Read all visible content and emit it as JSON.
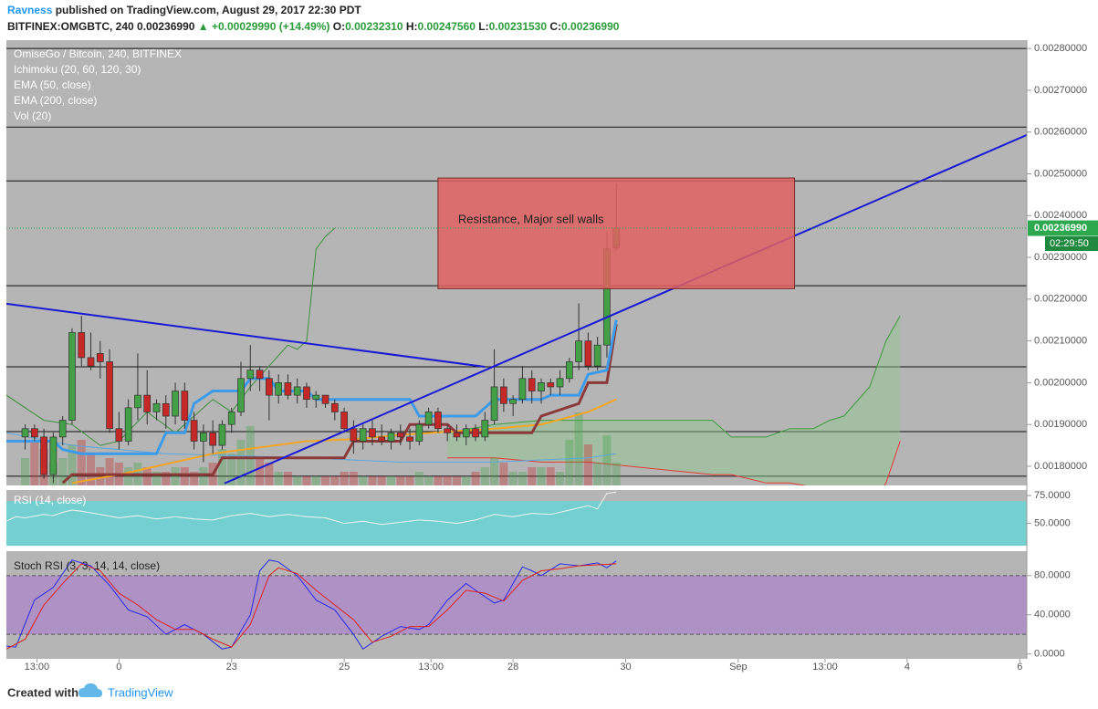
{
  "header": {
    "author": "Ravness",
    "published": "published on TradingView.com, August 29, 2017 22:30 PDT",
    "symbol": "BITFINEX:OMGBTC, 240",
    "price": "0.00236990",
    "change": "▲ +0.00029990 (+14.49%)",
    "ohlc": [
      {
        "label": "O:",
        "value": "0.00232310"
      },
      {
        "label": "H:",
        "value": "0.00247560"
      },
      {
        "label": "L:",
        "value": "0.00231530"
      },
      {
        "label": "C:",
        "value": "0.00236990"
      }
    ]
  },
  "footer": {
    "created": "Created with",
    "brand": "TradingView"
  },
  "chart_data": [
    {
      "type": "candlestick",
      "title": "OmiseGo / Bitcoin, 240, BITFINEX",
      "indicators": [
        "Ichimoku (20, 60, 120, 30)",
        "EMA (50, close)",
        "EMA (200, close)",
        "Vol (20)"
      ],
      "x": [
        -40,
        -36,
        -32,
        -28,
        -24,
        -20,
        -16,
        -12,
        -8,
        -4,
        0,
        4,
        8,
        12,
        16,
        20,
        24,
        28,
        32,
        36,
        40,
        44,
        48,
        52,
        56,
        60,
        64,
        68,
        72,
        76,
        80,
        84,
        88,
        92,
        96,
        100,
        104,
        108,
        112,
        116,
        120,
        124,
        128,
        132,
        136,
        140,
        144,
        148,
        152,
        156,
        160,
        164,
        168,
        172,
        176,
        180,
        184,
        188,
        192,
        196,
        200,
        204,
        208,
        212
      ],
      "open": [
        0.00187,
        0.00189,
        0.00187,
        0.00178,
        0.00187,
        0.00191,
        0.00212,
        0.00206,
        0.00207,
        0.00205,
        0.00189,
        0.00186,
        0.00194,
        0.00197,
        0.00193,
        0.00195,
        0.00192,
        0.00198,
        0.00191,
        0.00186,
        0.00188,
        0.00185,
        0.0019,
        0.00193,
        0.00201,
        0.00203,
        0.00201,
        0.00197,
        0.002,
        0.00197,
        0.00199,
        0.00196,
        0.00197,
        0.00195,
        0.00193,
        0.00189,
        0.00186,
        0.00189,
        0.00187,
        0.00186,
        0.00188,
        0.00187,
        0.00186,
        0.0019,
        0.00193,
        0.00189,
        0.00188,
        0.00187,
        0.00189,
        0.00187,
        0.00191,
        0.00199,
        0.00195,
        0.00196,
        0.00201,
        0.00198,
        0.002,
        0.00199,
        0.00201,
        0.00205,
        0.0021,
        0.00204,
        0.00209,
        0.0023231
      ],
      "high": [
        0.0019,
        0.0019,
        0.00189,
        0.00188,
        0.00192,
        0.00213,
        0.00216,
        0.00212,
        0.0021,
        0.00208,
        0.00193,
        0.00196,
        0.00207,
        0.00203,
        0.00196,
        0.00197,
        0.002,
        0.002,
        0.00193,
        0.0019,
        0.00191,
        0.00191,
        0.00194,
        0.00205,
        0.00209,
        0.00204,
        0.00203,
        0.00202,
        0.00202,
        0.00201,
        0.002,
        0.00198,
        0.00197,
        0.00196,
        0.00194,
        0.00191,
        0.0019,
        0.00191,
        0.0019,
        0.00189,
        0.0019,
        0.00189,
        0.00191,
        0.00194,
        0.00194,
        0.0019,
        0.0019,
        0.0019,
        0.0019,
        0.00193,
        0.00208,
        0.00201,
        0.00197,
        0.00204,
        0.00203,
        0.00201,
        0.00201,
        0.00203,
        0.00206,
        0.00219,
        0.00212,
        0.00211,
        0.00236,
        0.0024756
      ],
      "low": [
        0.00184,
        0.00186,
        0.00177,
        0.00176,
        0.00185,
        0.0019,
        0.00204,
        0.00203,
        0.00201,
        0.00188,
        0.00184,
        0.00185,
        0.00191,
        0.0019,
        0.00191,
        0.00189,
        0.0019,
        0.00189,
        0.00184,
        0.00181,
        0.00183,
        0.00184,
        0.00188,
        0.00192,
        0.00198,
        0.00198,
        0.00191,
        0.00195,
        0.00196,
        0.00195,
        0.00194,
        0.00194,
        0.00194,
        0.00191,
        0.00188,
        0.00183,
        0.00184,
        0.00185,
        0.00185,
        0.00184,
        0.00185,
        0.00184,
        0.00185,
        0.00189,
        0.00188,
        0.00186,
        0.00186,
        0.00185,
        0.00186,
        0.00186,
        0.0019,
        0.00193,
        0.00192,
        0.00195,
        0.00195,
        0.00195,
        0.00197,
        0.00197,
        0.002,
        0.00203,
        0.00203,
        0.00203,
        0.00206,
        0.0023153
      ],
      "close": [
        0.00189,
        0.00187,
        0.00178,
        0.00187,
        0.00191,
        0.00212,
        0.00206,
        0.00204,
        0.00205,
        0.00189,
        0.00186,
        0.00194,
        0.00197,
        0.00193,
        0.00195,
        0.00192,
        0.00198,
        0.00191,
        0.00186,
        0.00188,
        0.00185,
        0.0019,
        0.00193,
        0.00201,
        0.00203,
        0.00201,
        0.00197,
        0.002,
        0.00197,
        0.00199,
        0.00196,
        0.00197,
        0.00195,
        0.00193,
        0.00189,
        0.00186,
        0.00189,
        0.00187,
        0.00186,
        0.00188,
        0.00187,
        0.00186,
        0.0019,
        0.00193,
        0.00189,
        0.00188,
        0.00187,
        0.00189,
        0.00187,
        0.00191,
        0.00199,
        0.00195,
        0.00196,
        0.00201,
        0.00198,
        0.002,
        0.00199,
        0.00201,
        0.00205,
        0.0021,
        0.00204,
        0.00209,
        0.00232,
        0.0023699
      ],
      "volume": [
        30,
        50,
        40,
        25,
        30,
        45,
        50,
        35,
        20,
        30,
        25,
        20,
        25,
        20,
        15,
        15,
        20,
        20,
        15,
        20,
        25,
        40,
        35,
        50,
        65,
        30,
        25,
        15,
        15,
        10,
        10,
        10,
        10,
        10,
        15,
        15,
        10,
        10,
        10,
        10,
        10,
        10,
        15,
        10,
        10,
        10,
        10,
        10,
        15,
        20,
        30,
        25,
        15,
        15,
        20,
        20,
        20,
        15,
        50,
        80,
        45,
        25,
        55,
        25
      ],
      "up_color": "#43a047",
      "down_color": "#c62828",
      "xlim": [
        -48,
        387
      ],
      "xticks": [
        {
          "value": -35,
          "label": "13:00"
        },
        0,
        {
          "value": 48,
          "label": "23"
        },
        {
          "value": 96,
          "label": "25"
        },
        {
          "value": 133,
          "label": "13:00"
        },
        {
          "value": 168,
          "label": "28"
        },
        {
          "value": 216,
          "label": "30"
        },
        {
          "value": 264,
          "label": "Sep"
        },
        {
          "value": 301,
          "label": "13:00"
        },
        {
          "value": 336,
          "label": "4"
        },
        {
          "value": 384,
          "label": "6"
        }
      ],
      "ylim": [
        0.001754,
        0.00282
      ],
      "yticks": [
        {
          "value": 0.0018,
          "label": "0.00180000"
        },
        {
          "value": 0.0019,
          "label": "0.00190000"
        },
        {
          "value": 0.002,
          "label": "0.00200000"
        },
        {
          "value": 0.0021,
          "label": "0.00210000"
        },
        {
          "value": 0.0022,
          "label": "0.00220000"
        },
        {
          "value": 0.0023,
          "label": "0.00230000"
        },
        {
          "value": 0.0024,
          "label": "0.00240000"
        },
        {
          "value": 0.0025,
          "label": "0.00250000"
        },
        {
          "value": 0.0026,
          "label": "0.00260000"
        },
        {
          "value": 0.0027,
          "label": "0.00270000"
        },
        {
          "value": 0.0028,
          "label": "0.00280000"
        }
      ],
      "levels": [
        0.0028,
        0.002612,
        0.002483,
        0.002232,
        0.002038,
        0.001883,
        0.001776
      ],
      "level_color": "#111111",
      "cloud": {
        "color": "#8fc98f",
        "upper_color": "#3f9a3f",
        "lower_color": "#e53935",
        "x": [
          140,
          160,
          180,
          200,
          253,
          261,
          276,
          286,
          296,
          303,
          309,
          320,
          327,
          333
        ],
        "upper": [
          0.00188,
          0.0019,
          0.00191,
          0.00191,
          0.00191,
          0.00187,
          0.00187,
          0.00189,
          0.00189,
          0.00191,
          0.00192,
          0.00199,
          0.0021,
          0.00216
        ],
        "lower": [
          0.00182,
          0.00182,
          0.00181,
          0.00181,
          0.00178,
          0.00178,
          0.00176,
          0.00176,
          0.00175,
          0.00172,
          0.0017,
          0.0017,
          0.00176,
          0.00186
        ]
      },
      "overlays": [
        {
          "color": "#3f8f3f",
          "width": 1,
          "x": [
            -48,
            -40,
            -32,
            -20,
            -8,
            0,
            12,
            24,
            40,
            48,
            56,
            64,
            72,
            76,
            80,
            84,
            88,
            92
          ],
          "values": [
            0.00197,
            0.00194,
            0.00191,
            0.0019,
            0.00185,
            0.00186,
            0.00193,
            0.00188,
            0.00196,
            0.00193,
            0.00199,
            0.00204,
            0.00209,
            0.00208,
            0.0021,
            0.00232,
            0.00235,
            0.00237
          ]
        },
        {
          "color": "#5aa9e0",
          "width": 1,
          "x": [
            -48,
            -20,
            20,
            80,
            120,
            160,
            200,
            212
          ],
          "values": [
            0.00188,
            0.00185,
            0.00183,
            0.00182,
            0.00181,
            0.00181,
            0.00182,
            0.00183
          ]
        },
        {
          "color": "#f5a623",
          "width": 2,
          "x": [
            -20,
            0,
            40,
            80,
            100,
            120,
            160,
            180,
            200,
            212
          ],
          "values": [
            0.00176,
            0.00178,
            0.00183,
            0.00186,
            0.001865,
            0.001875,
            0.00189,
            0.0019,
            0.00193,
            0.00196
          ]
        },
        {
          "color": "#8b3a3a",
          "width": 3,
          "x": [
            -24,
            -20,
            40,
            44,
            96,
            100,
            120,
            124,
            140,
            144,
            176,
            180,
            196,
            200,
            208,
            212
          ],
          "values": [
            0.00176,
            0.00178,
            0.00178,
            0.00182,
            0.00182,
            0.00186,
            0.00186,
            0.0019,
            0.0019,
            0.00188,
            0.00188,
            0.00192,
            0.00195,
            0.002,
            0.002,
            0.00214
          ]
        },
        {
          "color": "#3d9be9",
          "width": 3,
          "x": [
            -48,
            -28,
            -24,
            -16,
            0,
            16,
            20,
            28,
            32,
            40,
            52,
            56,
            64,
            68,
            80,
            84,
            124,
            128,
            152,
            160,
            180,
            184,
            196,
            200,
            208,
            212
          ],
          "values": [
            0.00186,
            0.00186,
            0.00184,
            0.00183,
            0.00183,
            0.00183,
            0.00188,
            0.00188,
            0.00195,
            0.00198,
            0.00198,
            0.00201,
            0.00201,
            0.00198,
            0.00198,
            0.00196,
            0.00196,
            0.00192,
            0.00192,
            0.00196,
            0.00196,
            0.00197,
            0.00197,
            0.00202,
            0.00203,
            0.00215
          ]
        }
      ],
      "trendlines": [
        {
          "color": "#1a1ad6",
          "x": [
            -48,
            156
          ],
          "values": [
            0.002189,
            0.002038
          ]
        },
        {
          "color": "#1a1ad6",
          "x": [
            45,
            387
          ],
          "values": [
            0.001759,
            0.002593
          ]
        }
      ],
      "annotation": {
        "text": "Resistance, Major sell walls",
        "x": [
          136,
          288
        ],
        "values": [
          0.002225,
          0.00249
        ],
        "color": "#e06060"
      },
      "last_price": {
        "value": 0.0023699,
        "label": "0.00236990",
        "countdown": "02:29:50",
        "color": "#2ea84f"
      }
    },
    {
      "type": "line",
      "title": "RSI (14, close)",
      "x": [
        -48,
        -44,
        -40,
        -32,
        -28,
        -24,
        -20,
        -16,
        -8,
        0,
        8,
        16,
        24,
        32,
        40,
        48,
        56,
        64,
        72,
        80,
        88,
        96,
        104,
        112,
        120,
        128,
        136,
        144,
        152,
        160,
        168,
        176,
        184,
        192,
        200,
        204,
        208,
        212
      ],
      "values": [
        52,
        56,
        55,
        58,
        57,
        60,
        62,
        61,
        58,
        55,
        57,
        54,
        56,
        54,
        53,
        57,
        59,
        56,
        58,
        56,
        55,
        50,
        52,
        49,
        51,
        53,
        52,
        50,
        53,
        58,
        56,
        59,
        58,
        62,
        66,
        63,
        77,
        78
      ],
      "color": "#f2f2f2",
      "ylim": [
        30,
        80
      ],
      "yticks": [
        {
          "value": 75,
          "label": "75.0000"
        },
        {
          "value": 50,
          "label": "50.0000"
        }
      ],
      "band": [
        30,
        70
      ],
      "band_color": "#74d0d0"
    },
    {
      "type": "line",
      "title": "Stoch RSI (3, 3, 14, 14, close)",
      "series": [
        {
          "color": "#2a2ae6",
          "x": [
            -48,
            -44,
            -36,
            -28,
            -20,
            -12,
            -4,
            4,
            12,
            20,
            28,
            36,
            44,
            48,
            56,
            60,
            64,
            68,
            76,
            84,
            92,
            100,
            104,
            112,
            120,
            128,
            132,
            140,
            148,
            152,
            160,
            164,
            172,
            176,
            180,
            188,
            196,
            204,
            208,
            212
          ],
          "values": [
            8,
            7,
            55,
            68,
            96,
            90,
            70,
            45,
            38,
            20,
            30,
            20,
            5,
            7,
            40,
            85,
            96,
            94,
            80,
            55,
            45,
            20,
            5,
            18,
            28,
            25,
            30,
            55,
            72,
            65,
            52,
            55,
            89,
            85,
            80,
            92,
            90,
            93,
            88,
            95
          ]
        },
        {
          "color": "#e02020",
          "x": [
            -48,
            -40,
            -32,
            -24,
            -16,
            -8,
            0,
            8,
            16,
            24,
            32,
            40,
            48,
            56,
            64,
            68,
            76,
            84,
            92,
            100,
            108,
            116,
            124,
            132,
            140,
            148,
            156,
            164,
            172,
            180,
            188,
            196,
            204,
            212
          ],
          "values": [
            5,
            15,
            50,
            72,
            92,
            85,
            62,
            50,
            35,
            25,
            25,
            15,
            7,
            30,
            80,
            88,
            82,
            65,
            50,
            35,
            12,
            18,
            28,
            28,
            45,
            65,
            62,
            54,
            75,
            85,
            87,
            90,
            91,
            92
          ]
        }
      ],
      "ylim": [
        -5,
        105
      ],
      "yticks": [
        {
          "value": 80,
          "label": "80.0000"
        },
        {
          "value": 40,
          "label": "40.0000"
        },
        {
          "value": 0,
          "label": "0.0000"
        }
      ],
      "band": [
        20,
        80
      ],
      "band_color": "#ae92c6"
    }
  ]
}
